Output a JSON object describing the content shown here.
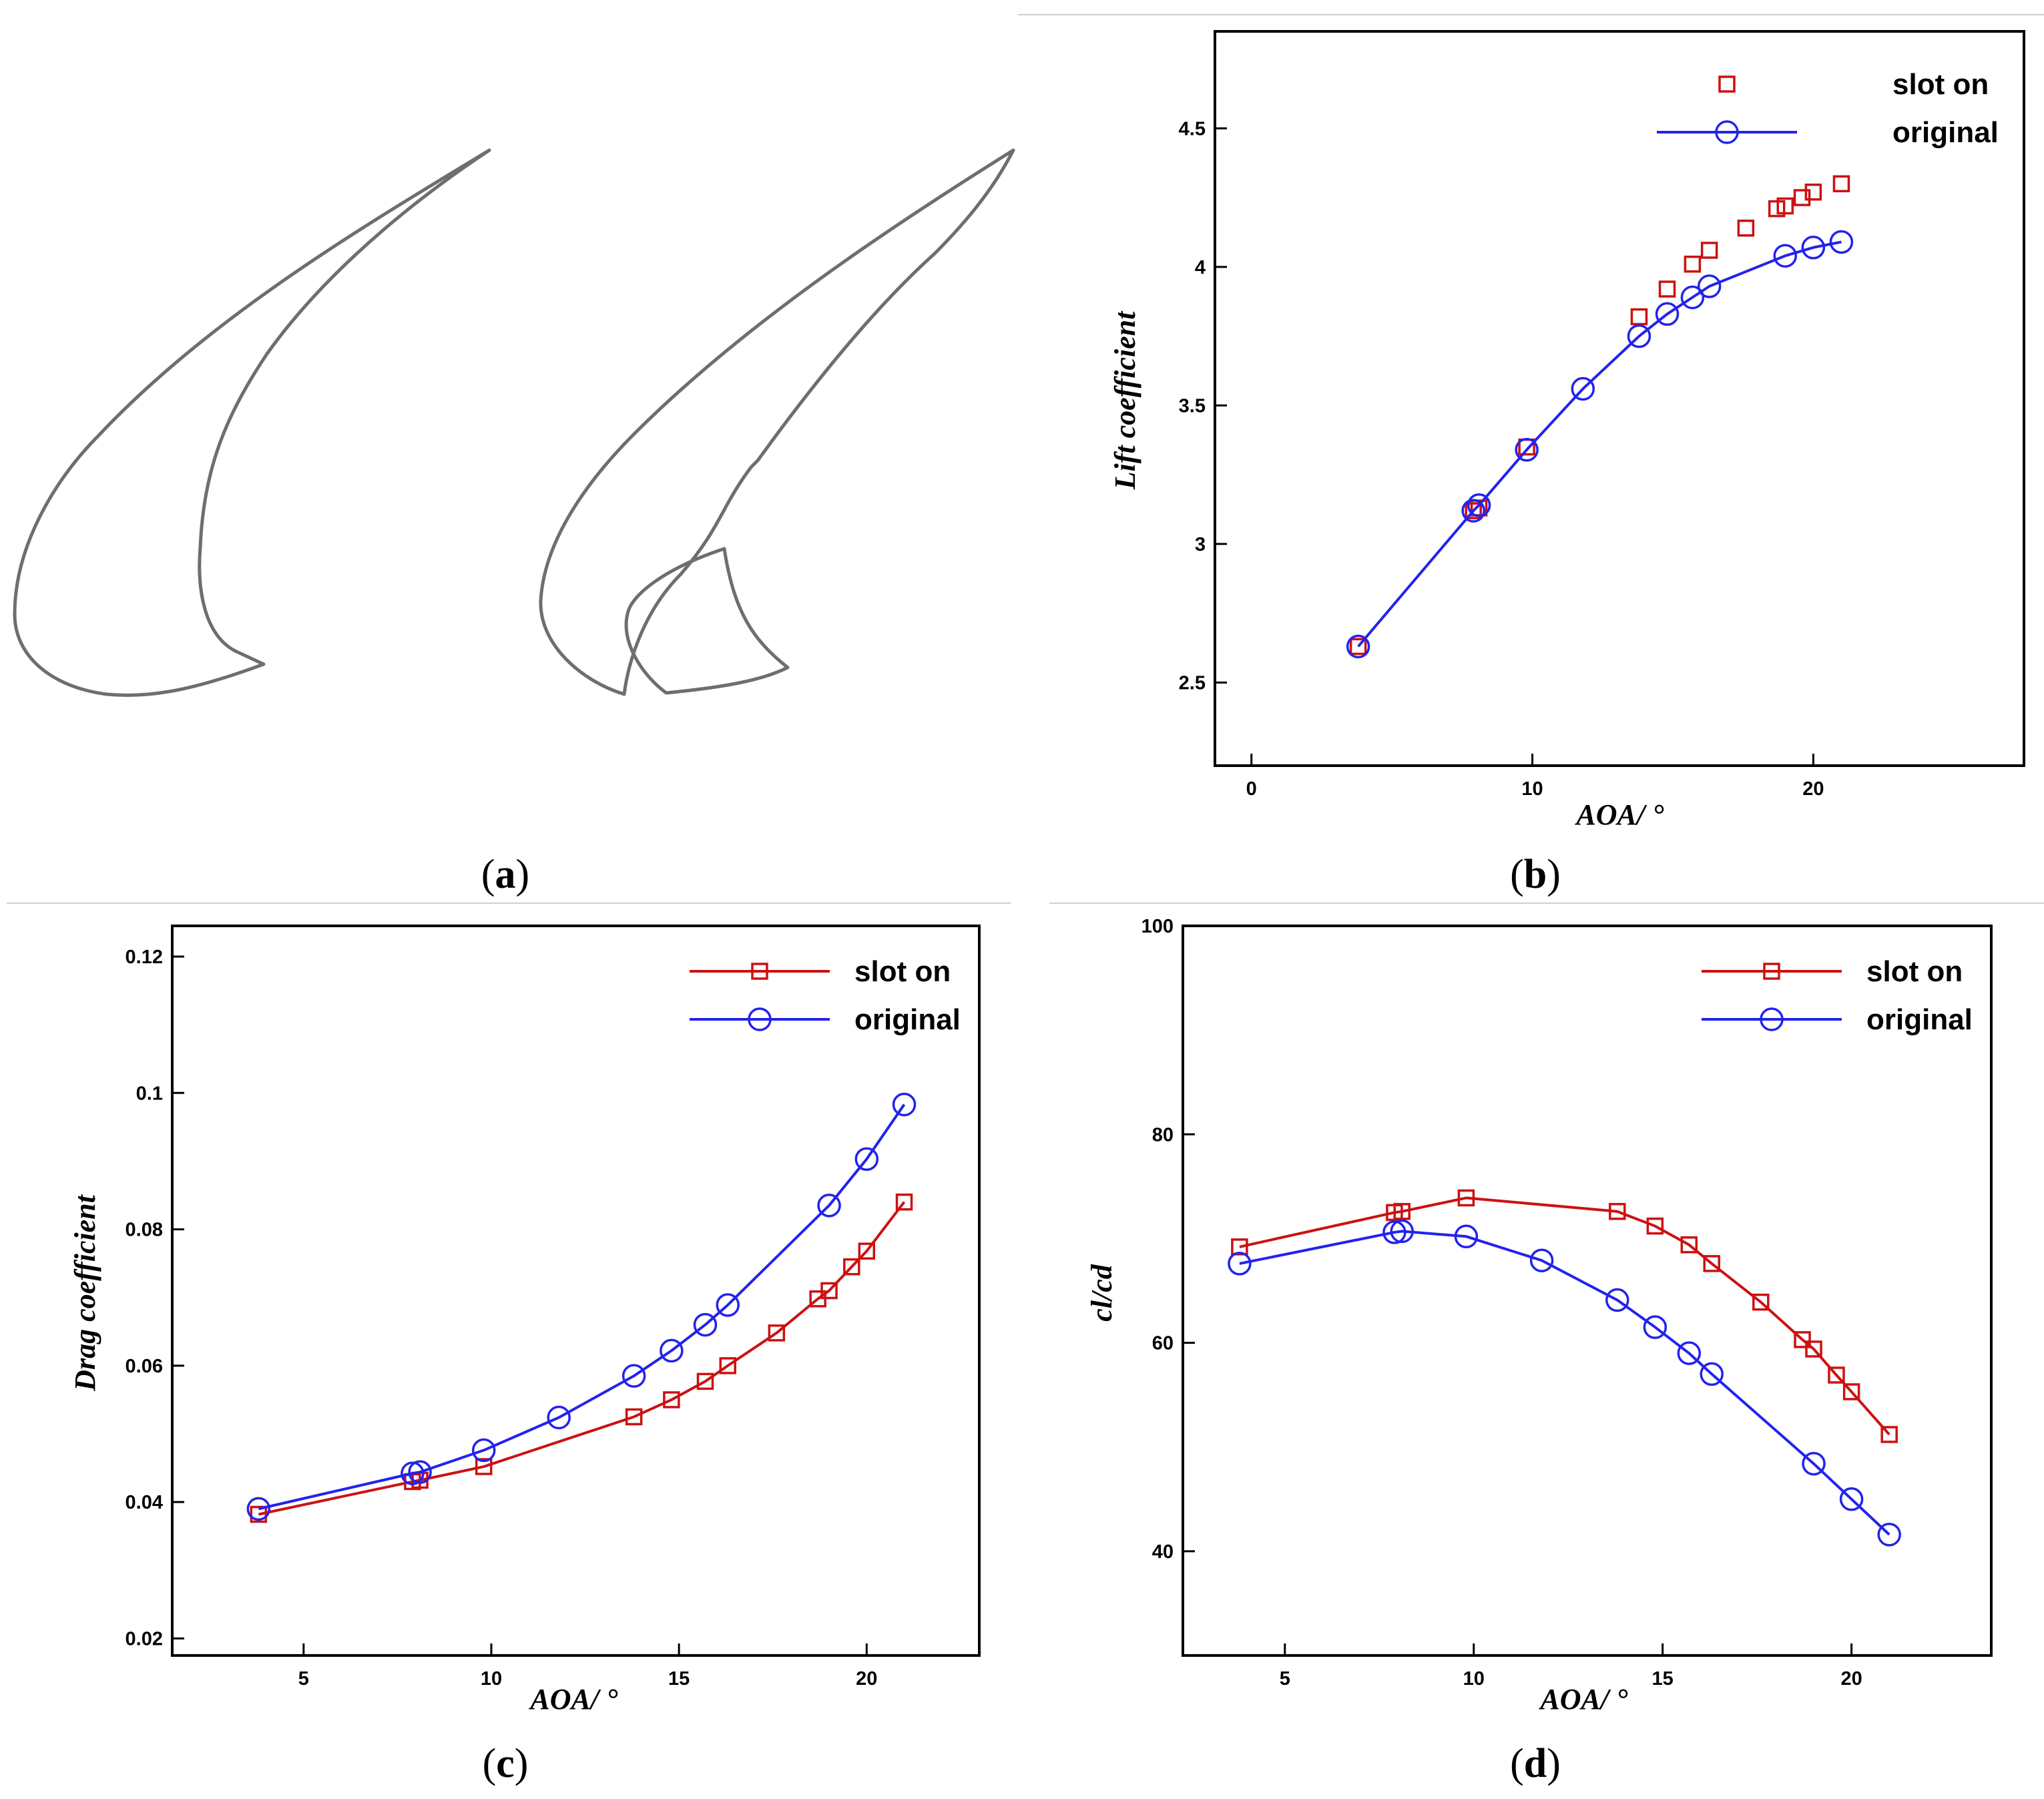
{
  "figure": {
    "panels": [
      {
        "id": "a",
        "label_open": "(",
        "label_letter": "a",
        "label_close": ")"
      },
      {
        "id": "b",
        "label_open": "(",
        "label_letter": "b",
        "label_close": ")"
      },
      {
        "id": "c",
        "label_open": "(",
        "label_letter": "c",
        "label_close": ")"
      },
      {
        "id": "d",
        "label_open": "(",
        "label_letter": "d",
        "label_close": ")"
      }
    ],
    "airfoil_sketch": {
      "description_colors": {
        "outline": "#6e6e6e"
      }
    }
  },
  "colors": {
    "slot_on": "#cc1111",
    "original": "#2222ee"
  },
  "chart_data": [
    {
      "panel": "b",
      "type": "line",
      "title": "",
      "xlabel": "AOA/ °",
      "ylabel": "Lift coefficient",
      "xlim": [
        -1.3,
        27.5
      ],
      "ylim": [
        2.2,
        4.85
      ],
      "xticks": [
        0,
        10,
        20
      ],
      "yticks": [
        2.5,
        3,
        3.5,
        4,
        4.5
      ],
      "xtick_labels": [
        "0",
        "10",
        "20"
      ],
      "ytick_labels": [
        "2.5",
        "3",
        "3.5",
        "4",
        "4.5"
      ],
      "legend_position": "top-right",
      "series": [
        {
          "name": "slot on",
          "marker": "square",
          "line": false,
          "color": "#cc1111",
          "x": [
            3.8,
            7.9,
            8.1,
            9.8,
            13.8,
            14.8,
            15.7,
            16.3,
            17.6,
            18.7,
            19.0,
            19.6,
            20.0,
            21.0
          ],
          "y": [
            2.63,
            3.12,
            3.13,
            3.35,
            3.82,
            3.92,
            4.01,
            4.06,
            4.14,
            4.21,
            4.22,
            4.25,
            4.27,
            4.3
          ]
        },
        {
          "name": "original",
          "marker": "circle",
          "line": true,
          "color": "#2222ee",
          "x": [
            3.8,
            7.9,
            8.1,
            9.8,
            11.8,
            13.8,
            14.8,
            15.7,
            16.3,
            19.0,
            20.0,
            21.0
          ],
          "y": [
            2.63,
            3.12,
            3.14,
            3.34,
            3.56,
            3.75,
            3.83,
            3.89,
            3.93,
            4.04,
            4.07,
            4.09
          ]
        }
      ]
    },
    {
      "panel": "c",
      "type": "line",
      "title": "",
      "xlabel": "AOA/ °",
      "ylabel": "Drag coefficient",
      "xlim": [
        1.5,
        23.0
      ],
      "ylim": [
        0.0175,
        0.1245
      ],
      "xticks": [
        5,
        10,
        15,
        20
      ],
      "yticks": [
        0.02,
        0.04,
        0.06,
        0.08,
        0.1,
        0.12
      ],
      "xtick_labels": [
        "5",
        "10",
        "15",
        "20"
      ],
      "ytick_labels": [
        "0.02",
        "0.04",
        "0.06",
        "0.08",
        "0.1",
        "0.12"
      ],
      "legend_position": "top-right",
      "series": [
        {
          "name": "slot on",
          "marker": "square",
          "line": true,
          "color": "#cc1111",
          "x": [
            3.8,
            7.9,
            8.1,
            9.8,
            13.8,
            14.8,
            15.7,
            16.3,
            17.6,
            18.7,
            19.0,
            19.6,
            20.0,
            21.0
          ],
          "y": [
            0.0382,
            0.043,
            0.0432,
            0.0452,
            0.0525,
            0.055,
            0.0577,
            0.06,
            0.0648,
            0.0698,
            0.071,
            0.0745,
            0.0768,
            0.084
          ]
        },
        {
          "name": "original",
          "marker": "circle",
          "line": true,
          "color": "#2222ee",
          "x": [
            3.8,
            7.9,
            8.1,
            9.8,
            11.8,
            13.8,
            14.8,
            15.7,
            16.3,
            19.0,
            20.0,
            21.0
          ],
          "y": [
            0.039,
            0.0442,
            0.0444,
            0.0476,
            0.0524,
            0.0585,
            0.0622,
            0.066,
            0.0689,
            0.0835,
            0.0903,
            0.0983
          ]
        }
      ]
    },
    {
      "panel": "d",
      "type": "line",
      "title": "",
      "xlabel": "AOA/ °",
      "ylabel": "cl/cd",
      "xlim": [
        2.3,
        23.7
      ],
      "ylim": [
        30,
        100
      ],
      "xticks": [
        5,
        10,
        15,
        20
      ],
      "yticks": [
        40,
        60,
        80,
        100
      ],
      "xtick_labels": [
        "5",
        "10",
        "15",
        "20"
      ],
      "ytick_labels": [
        "40",
        "60",
        "80",
        "100"
      ],
      "legend_position": "top-right",
      "series": [
        {
          "name": "slot on",
          "marker": "square",
          "line": true,
          "color": "#cc1111",
          "x": [
            3.8,
            7.9,
            8.1,
            9.8,
            13.8,
            14.8,
            15.7,
            16.3,
            17.6,
            18.7,
            19.0,
            19.6,
            20.0,
            21.0
          ],
          "y": [
            69.2,
            72.5,
            72.6,
            73.9,
            72.6,
            71.2,
            69.4,
            67.6,
            63.9,
            60.3,
            59.4,
            56.9,
            55.3,
            51.2
          ]
        },
        {
          "name": "original",
          "marker": "circle",
          "line": true,
          "color": "#2222ee",
          "x": [
            3.8,
            7.9,
            8.1,
            9.8,
            11.8,
            13.8,
            14.8,
            15.7,
            16.3,
            19.0,
            20.0,
            21.0
          ],
          "y": [
            67.6,
            70.6,
            70.7,
            70.2,
            67.9,
            64.1,
            61.5,
            59.0,
            57.0,
            48.4,
            45.0,
            41.6
          ]
        }
      ]
    }
  ]
}
